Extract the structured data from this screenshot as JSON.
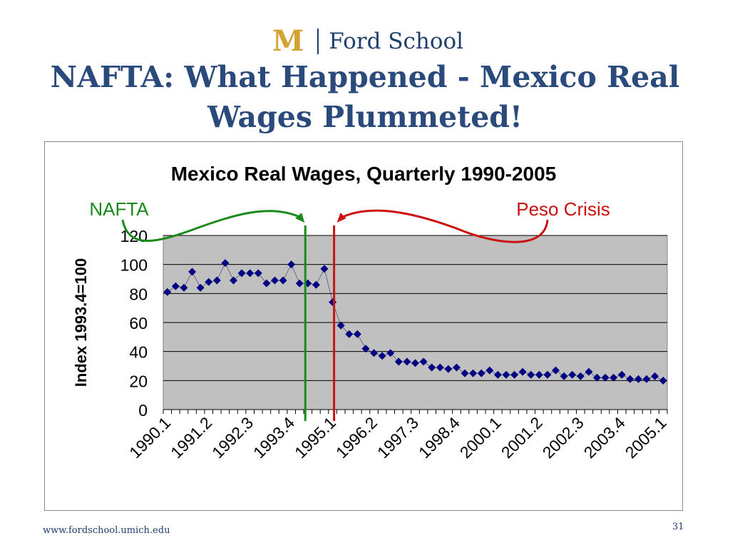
{
  "header": {
    "logo_mark": "M",
    "logo_text": "Ford School",
    "slide_title": "NAFTA: What Happened - Mexico Real Wages Plummeted!"
  },
  "footer": {
    "url": "www.fordschool.umich.edu",
    "page_number": "31"
  },
  "colors": {
    "title": "#2b4a7c",
    "marker": "#000080",
    "plot_bg": "#c0c0c0",
    "nafta": "#1a8a1a",
    "peso_crisis": "#cc1111"
  },
  "chart_data": {
    "type": "scatter",
    "title": "Mexico Real Wages, Quarterly 1990-2005",
    "xlabel": "",
    "ylabel": "Index 1993.4=100",
    "ylim": [
      0,
      120
    ],
    "yticks": [
      0,
      20,
      40,
      60,
      80,
      100,
      120
    ],
    "x_labels": [
      "1990.1",
      "1991.2",
      "1992.3",
      "1993.4",
      "1995.1",
      "1996.2",
      "1997.3",
      "1998.4",
      "2000.1",
      "2001.2",
      "2002.3",
      "2003.4",
      "2005.1"
    ],
    "x_label_every": 5,
    "grid": true,
    "series": [
      {
        "values": [
          81,
          85,
          84,
          95,
          84,
          88,
          89,
          101,
          89,
          94,
          94,
          94,
          87,
          89,
          89,
          100,
          87,
          87,
          86,
          97,
          74,
          58,
          52,
          52,
          42,
          39,
          37,
          39,
          33,
          33,
          32,
          33,
          29,
          29,
          28,
          29,
          25,
          25,
          25,
          27,
          24,
          24,
          24,
          26,
          24,
          24,
          24,
          27,
          23,
          24,
          23,
          26,
          22,
          22,
          22,
          24,
          21,
          21,
          21,
          23,
          20
        ]
      }
    ],
    "annotations": [
      {
        "label": "NAFTA",
        "at_index": 16
      },
      {
        "label": "Peso Crisis",
        "at_index": 20
      }
    ]
  }
}
